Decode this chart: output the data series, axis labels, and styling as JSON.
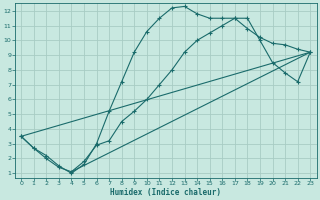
{
  "xlabel": "Humidex (Indice chaleur)",
  "xlim": [
    -0.5,
    23.5
  ],
  "ylim": [
    0.7,
    12.5
  ],
  "xticks": [
    0,
    1,
    2,
    3,
    4,
    5,
    6,
    7,
    8,
    9,
    10,
    11,
    12,
    13,
    14,
    15,
    16,
    17,
    18,
    19,
    20,
    21,
    22,
    23
  ],
  "yticks": [
    1,
    2,
    3,
    4,
    5,
    6,
    7,
    8,
    9,
    10,
    11,
    12
  ],
  "bg_color": "#c8e8e0",
  "grid_color": "#a8ccc4",
  "line_color": "#1a6b6b",
  "curve1_x": [
    0,
    1,
    2,
    3,
    4,
    5,
    6,
    7,
    8,
    9,
    10,
    11,
    12,
    13,
    14,
    15,
    16,
    17,
    18,
    19,
    20,
    21,
    22,
    23
  ],
  "curve1_y": [
    3.5,
    2.7,
    2.2,
    1.5,
    1.0,
    1.6,
    3.0,
    5.2,
    7.2,
    9.2,
    10.6,
    11.5,
    12.2,
    12.3,
    11.8,
    11.5,
    11.5,
    11.5,
    10.8,
    10.2,
    9.8,
    9.7,
    9.4,
    9.2
  ],
  "curve2_x": [
    0,
    1,
    2,
    3,
    4,
    5,
    6,
    7,
    8,
    9,
    10,
    11,
    12,
    13,
    14,
    15,
    16,
    17,
    18,
    19,
    20,
    21,
    22,
    23
  ],
  "curve2_y": [
    3.5,
    2.7,
    2.0,
    1.4,
    1.1,
    1.8,
    2.9,
    3.2,
    4.5,
    5.2,
    6.0,
    7.0,
    8.0,
    9.2,
    10.0,
    10.5,
    11.0,
    11.5,
    11.5,
    10.0,
    8.5,
    7.8,
    7.2,
    9.2
  ],
  "line1_x": [
    0,
    23
  ],
  "line1_y": [
    3.5,
    9.2
  ],
  "line2_x": [
    4,
    23
  ],
  "line2_y": [
    1.1,
    9.2
  ]
}
